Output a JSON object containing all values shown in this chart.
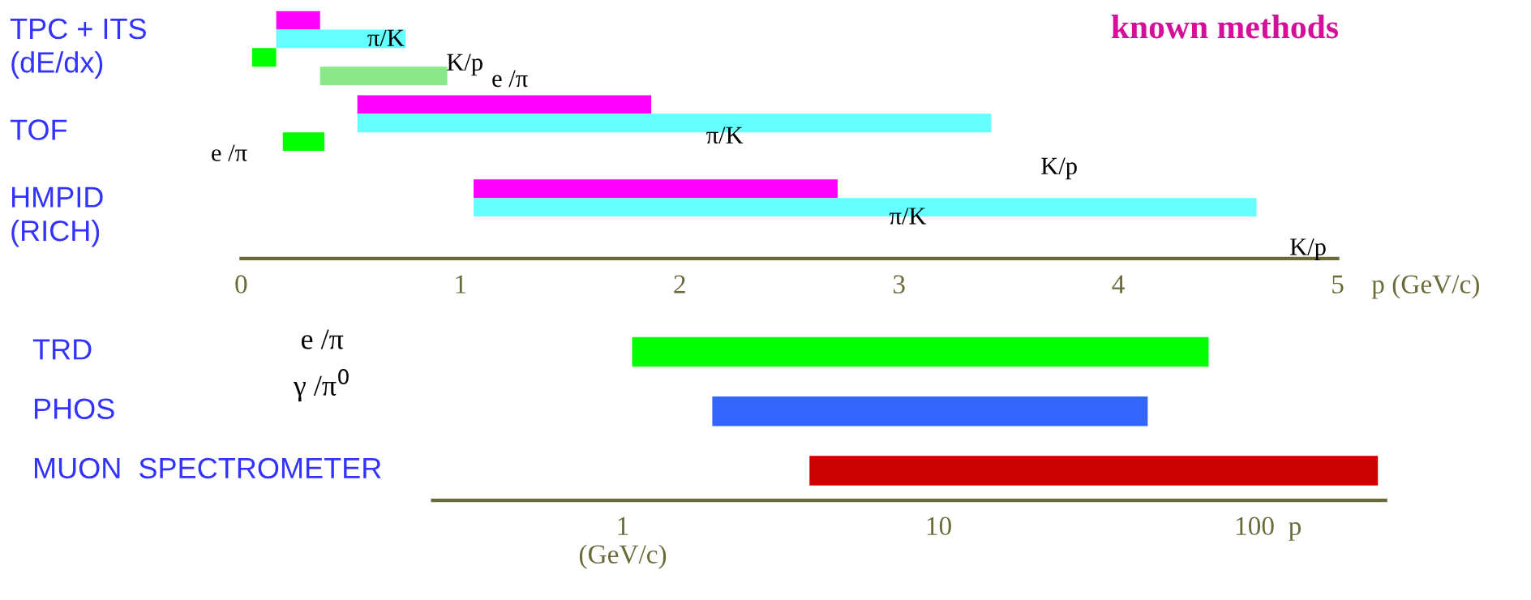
{
  "chart_data": [
    {
      "type": "bar",
      "orientation": "horizontal",
      "title": "known methods",
      "categories": [
        "TPC + ITS\n(dE/dx)",
        "TOF",
        "HMPID\n(RICH)"
      ],
      "series": [
        {
          "color": "#ff00ff",
          "base": [
            0.16,
            0.53,
            1.06
          ],
          "values": [
            0.2,
            1.34,
            1.66
          ]
        },
        {
          "color": "#66ffff",
          "base": [
            0.16,
            0.53,
            1.06
          ],
          "values": [
            0.59,
            2.89,
            3.57
          ]
        },
        {
          "color": "#00ff00",
          "base": [
            0.05,
            0.19,
            null
          ],
          "values": [
            0.11,
            0.19,
            null
          ]
        },
        {
          "color": "#88e888",
          "base": [
            0.36,
            null,
            null
          ],
          "values": [
            0.58,
            null,
            null
          ]
        }
      ],
      "xlim": [
        0,
        5
      ],
      "xticks": [
        0,
        1,
        2,
        3,
        4,
        5
      ],
      "xlabel": "p (GeV/c)",
      "annotations": [
        "π/K",
        "K/p",
        "e /π",
        "e /π",
        "π/K",
        "K/p",
        "π/K",
        "K/p"
      ]
    },
    {
      "type": "bar",
      "orientation": "horizontal",
      "log": "x",
      "categories": [
        "TRD",
        "PHOS",
        "MUON  SPECTROMETER"
      ],
      "base": [
        1.07,
        1.92,
        3.9
      ],
      "values": [
        70.5,
        44,
        242
      ],
      "colors": [
        "#00ff00",
        "#3366ff",
        "#cc0000"
      ],
      "xlim": [
        0.25,
        260
      ],
      "xticks": [
        {
          "value": 1,
          "label": "1\n(GeV/c)"
        },
        10,
        100
      ],
      "xlabel": "p",
      "annotations": [
        "e /π",
        "γ /π$^{0}$"
      ]
    }
  ]
}
